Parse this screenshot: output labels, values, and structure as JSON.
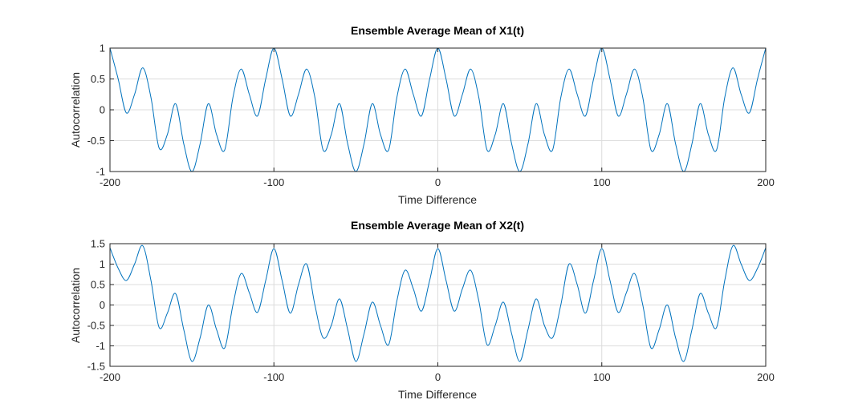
{
  "chart_data": [
    {
      "type": "line",
      "title": "Ensemble Average Mean of X1(t)",
      "xlabel": "Time Difference",
      "ylabel": "Autocorrelation",
      "xlim": [
        -200,
        200
      ],
      "ylim": [
        -1,
        1
      ],
      "xticks": [
        -200,
        -100,
        0,
        100,
        200
      ],
      "xtick_labels": [
        "-200",
        "-100",
        "0",
        "100",
        "200"
      ],
      "yticks": [
        -1,
        -0.5,
        0,
        0.5,
        1
      ],
      "ytick_labels": [
        "-1",
        "-0.5",
        "0",
        "0.5",
        "1"
      ],
      "grid": true,
      "line_color": "#0072bd",
      "series": [
        {
          "x": [
            -200,
            -195,
            -190,
            -185,
            -180,
            -175,
            -170,
            -165,
            -160,
            -155,
            -150,
            -145,
            -140,
            -135,
            -130,
            -125,
            -120,
            -115,
            -110,
            -105,
            -100,
            -95,
            -90,
            -85,
            -80,
            -75,
            -70,
            -65,
            -60,
            -55,
            -50,
            -45,
            -40,
            -35,
            -30,
            -25,
            -20,
            -15,
            -10,
            -5,
            0,
            5,
            10,
            15,
            20,
            25,
            30,
            35,
            40,
            45,
            50,
            55,
            60,
            65,
            70,
            75,
            80,
            85,
            90,
            95,
            100,
            105,
            110,
            115,
            120,
            125,
            130,
            135,
            140,
            145,
            150,
            155,
            160,
            165,
            170,
            175,
            180,
            185,
            190,
            195,
            200
          ],
          "y": [
            1.0,
            0.5,
            -0.05,
            0.25,
            0.68,
            0.2,
            -0.62,
            -0.4,
            0.1,
            -0.55,
            -1.0,
            -0.55,
            0.1,
            -0.4,
            -0.65,
            0.2,
            0.66,
            0.25,
            -0.1,
            0.5,
            1.0,
            0.5,
            -0.1,
            0.25,
            0.66,
            0.2,
            -0.65,
            -0.4,
            0.1,
            -0.55,
            -1.0,
            -0.55,
            0.1,
            -0.4,
            -0.65,
            0.2,
            0.66,
            0.25,
            -0.1,
            0.5,
            1.0,
            0.5,
            -0.1,
            0.25,
            0.66,
            0.2,
            -0.65,
            -0.4,
            0.1,
            -0.55,
            -1.0,
            -0.55,
            0.1,
            -0.4,
            -0.65,
            0.2,
            0.66,
            0.25,
            -0.1,
            0.5,
            1.0,
            0.5,
            -0.1,
            0.25,
            0.66,
            0.2,
            -0.65,
            -0.4,
            0.1,
            -0.55,
            -1.0,
            -0.55,
            0.1,
            -0.4,
            -0.65,
            0.2,
            0.68,
            0.25,
            -0.05,
            0.5,
            1.0
          ]
        }
      ]
    },
    {
      "type": "line",
      "title": "Ensemble Average Mean of X2(t)",
      "xlabel": "Time Difference",
      "ylabel": "Autocorrelation",
      "xlim": [
        -200,
        200
      ],
      "ylim": [
        -1.5,
        1.5
      ],
      "xticks": [
        -200,
        -100,
        0,
        100,
        200
      ],
      "xtick_labels": [
        "-200",
        "-100",
        "0",
        "100",
        "200"
      ],
      "yticks": [
        -1.5,
        -1,
        -0.5,
        0,
        0.5,
        1,
        1.5
      ],
      "ytick_labels": [
        "-1.5",
        "-1",
        "-0.5",
        "0",
        "0.5",
        "1",
        "1.5"
      ],
      "grid": true,
      "line_color": "#0072bd",
      "series": [
        {
          "x": [
            -200,
            -195,
            -190,
            -185,
            -180,
            -175,
            -170,
            -165,
            -160,
            -155,
            -150,
            -145,
            -140,
            -135,
            -130,
            -125,
            -120,
            -115,
            -110,
            -105,
            -100,
            -95,
            -90,
            -85,
            -80,
            -75,
            -70,
            -65,
            -60,
            -55,
            -50,
            -45,
            -40,
            -35,
            -30,
            -25,
            -20,
            -15,
            -10,
            -5,
            0,
            5,
            10,
            15,
            20,
            25,
            30,
            35,
            40,
            45,
            50,
            55,
            60,
            65,
            70,
            75,
            80,
            85,
            90,
            95,
            100,
            105,
            110,
            115,
            120,
            125,
            130,
            135,
            140,
            145,
            150,
            155,
            160,
            165,
            170,
            175,
            180,
            185,
            190,
            195,
            200
          ],
          "y": [
            1.4,
            0.9,
            0.6,
            1.0,
            1.45,
            0.6,
            -0.55,
            -0.2,
            0.28,
            -0.6,
            -1.38,
            -0.8,
            0.0,
            -0.6,
            -1.05,
            0.0,
            0.77,
            0.3,
            -0.18,
            0.6,
            1.38,
            0.6,
            -0.2,
            0.5,
            1.0,
            0.0,
            -0.8,
            -0.5,
            0.15,
            -0.6,
            -1.38,
            -0.7,
            0.07,
            -0.5,
            -0.97,
            0.1,
            0.85,
            0.4,
            -0.15,
            0.6,
            1.38,
            0.6,
            -0.15,
            0.4,
            0.85,
            0.1,
            -0.97,
            -0.5,
            0.07,
            -0.7,
            -1.38,
            -0.6,
            0.15,
            -0.5,
            -0.8,
            0.0,
            1.0,
            0.5,
            -0.2,
            0.6,
            1.38,
            0.6,
            -0.18,
            0.3,
            0.77,
            0.0,
            -1.05,
            -0.6,
            0.0,
            -0.8,
            -1.38,
            -0.6,
            0.28,
            -0.2,
            -0.55,
            0.6,
            1.45,
            1.0,
            0.6,
            0.9,
            1.4
          ]
        }
      ]
    }
  ]
}
